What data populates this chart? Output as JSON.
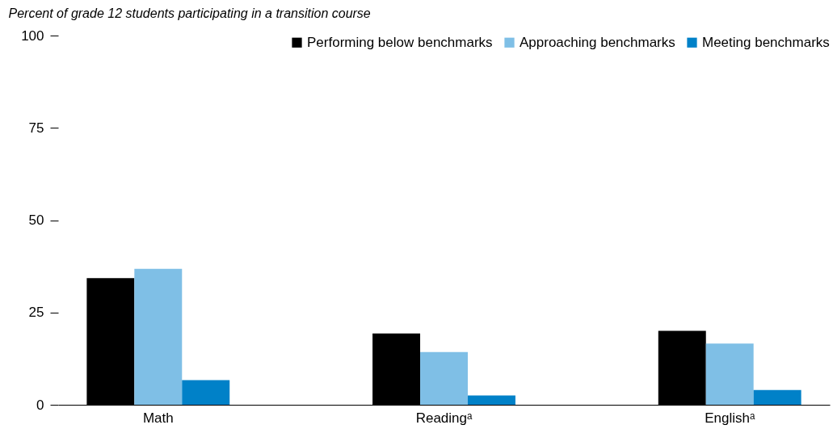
{
  "chart_data": {
    "type": "bar",
    "ylabel": "Percent of grade 12 students participating in a transition course",
    "categories": [
      "Math",
      "Readingᵃ",
      "Englishᵃ"
    ],
    "series": [
      {
        "name": "Performing below benchmarks",
        "color": "#000000",
        "values": [
          34.3,
          19.3,
          20.0
        ]
      },
      {
        "name": "Approaching benchmarks",
        "color": "#7fbfe6",
        "values": [
          36.8,
          14.3,
          16.6
        ]
      },
      {
        "name": "Meeting benchmarks",
        "color": "#0081c8",
        "values": [
          6.7,
          2.5,
          4.0
        ]
      }
    ],
    "ylim": [
      0,
      100
    ],
    "yticks": [
      0,
      25,
      50,
      75,
      100
    ],
    "grid": false,
    "legend": "top right"
  }
}
